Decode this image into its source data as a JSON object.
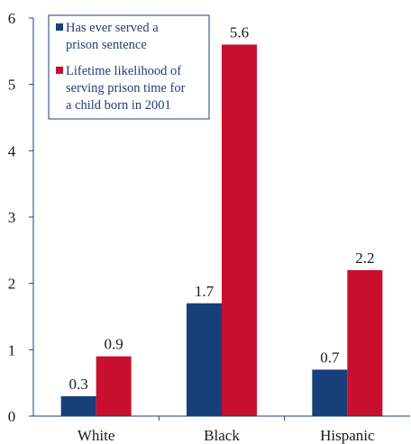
{
  "chart_data": {
    "type": "bar",
    "categories": [
      "White",
      "Black",
      "Hispanic"
    ],
    "series": [
      {
        "name": "Has ever served a prison sentence",
        "legend_lines": [
          "Has ever served a",
          "prison sentence"
        ],
        "color": "#173f7a",
        "values": [
          0.3,
          1.7,
          0.7
        ],
        "labels": [
          "0.3",
          "1.7",
          "0.7"
        ]
      },
      {
        "name": "Lifetime likelihood of serving prison time for a child born in 2001",
        "legend_lines": [
          "Lifetime likelihood of",
          "serving prison time for",
          "a child born in 2001"
        ],
        "color": "#c8102e",
        "values": [
          0.9,
          5.6,
          2.2
        ],
        "labels": [
          "0.9",
          "5.6",
          "2.2"
        ]
      }
    ],
    "ylim": [
      0,
      6
    ],
    "yticks": [
      0,
      1,
      2,
      3,
      4,
      5,
      6
    ],
    "legend_position": "top-left",
    "grid": false,
    "title": "",
    "xlabel": "",
    "ylabel": ""
  },
  "colors": {
    "axis": "#1f3d7a",
    "legend_border": "#1f3d7a",
    "text": "#1a1a1a"
  }
}
